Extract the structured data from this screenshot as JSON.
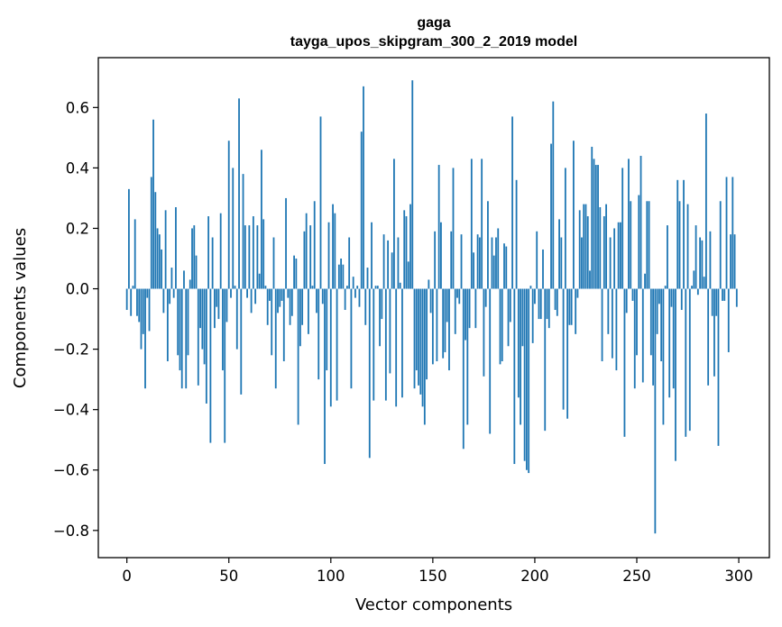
{
  "chart_data": {
    "type": "bar",
    "title": "gaga",
    "subtitle": "tayga_upos_skipgram_300_2_2019 model",
    "xlabel": "Vector components",
    "ylabel": "Components values",
    "xlim": [
      -14,
      315
    ],
    "ylim": [
      -0.89,
      0.765
    ],
    "xticks": [
      0,
      50,
      100,
      150,
      200,
      250,
      300
    ],
    "xtick_labels": [
      "0",
      "50",
      "100",
      "150",
      "200",
      "250",
      "300"
    ],
    "yticks": [
      -0.8,
      -0.6,
      -0.4,
      -0.2,
      0.0,
      0.2,
      0.4,
      0.6
    ],
    "ytick_labels": [
      "−0.8",
      "−0.6",
      "−0.4",
      "−0.2",
      "0.0",
      "0.2",
      "0.4",
      "0.6"
    ],
    "grid": false,
    "bar_color": "#1f77b4",
    "x": "0..299 (component index)",
    "values": [
      -0.07,
      0.33,
      -0.09,
      0.01,
      0.23,
      -0.09,
      -0.11,
      -0.2,
      -0.15,
      -0.33,
      -0.03,
      -0.14,
      0.37,
      0.56,
      0.32,
      0.2,
      0.18,
      0.13,
      -0.08,
      0.26,
      -0.24,
      -0.05,
      0.07,
      -0.03,
      0.27,
      -0.22,
      -0.27,
      -0.33,
      0.06,
      -0.33,
      -0.22,
      0.03,
      0.2,
      0.21,
      0.11,
      -0.32,
      -0.13,
      -0.2,
      -0.25,
      -0.38,
      0.24,
      -0.51,
      0.17,
      -0.13,
      -0.06,
      -0.1,
      0.25,
      -0.27,
      -0.51,
      -0.11,
      0.49,
      -0.03,
      0.4,
      0.01,
      -0.2,
      0.63,
      -0.35,
      0.38,
      0.21,
      -0.03,
      0.21,
      -0.08,
      0.24,
      -0.05,
      0.21,
      0.05,
      0.46,
      0.23,
      0.01,
      -0.12,
      -0.04,
      -0.22,
      0.17,
      -0.33,
      -0.08,
      -0.06,
      -0.04,
      -0.24,
      0.3,
      -0.03,
      -0.12,
      -0.09,
      0.11,
      0.1,
      -0.45,
      -0.19,
      -0.12,
      0.19,
      0.25,
      -0.15,
      0.21,
      0.01,
      0.29,
      -0.08,
      -0.3,
      0.57,
      -0.05,
      -0.58,
      -0.27,
      0.22,
      -0.39,
      0.28,
      0.25,
      -0.37,
      0.08,
      0.1,
      0.08,
      -0.07,
      0.01,
      0.17,
      -0.33,
      0.04,
      -0.03,
      0.01,
      -0.06,
      0.52,
      0.67,
      -0.12,
      0.07,
      -0.56,
      0.22,
      -0.37,
      0.01,
      0.01,
      -0.19,
      -0.1,
      0.18,
      -0.37,
      0.16,
      -0.28,
      0.12,
      0.43,
      -0.39,
      0.17,
      0.02,
      -0.36,
      0.26,
      0.24,
      0.09,
      0.28,
      0.69,
      -0.33,
      -0.27,
      -0.32,
      -0.35,
      -0.39,
      -0.45,
      -0.3,
      0.03,
      -0.08,
      -0.25,
      0.19,
      -0.24,
      0.41,
      0.22,
      -0.23,
      -0.21,
      -0.11,
      -0.27,
      0.19,
      0.4,
      -0.15,
      -0.03,
      -0.05,
      0.18,
      -0.53,
      -0.17,
      -0.45,
      -0.13,
      0.43,
      0.12,
      -0.13,
      0.18,
      0.17,
      0.43,
      -0.29,
      -0.06,
      0.29,
      -0.48,
      0.17,
      0.11,
      0.17,
      0.2,
      -0.25,
      -0.24,
      0.15,
      0.14,
      -0.19,
      -0.11,
      0.57,
      -0.58,
      0.36,
      -0.36,
      -0.45,
      -0.19,
      -0.57,
      -0.6,
      -0.61,
      0.01,
      -0.18,
      -0.05,
      0.19,
      -0.1,
      -0.1,
      0.13,
      -0.47,
      -0.1,
      -0.13,
      0.48,
      0.62,
      -0.07,
      -0.09,
      0.23,
      0.17,
      -0.4,
      0.4,
      -0.43,
      -0.12,
      -0.12,
      0.49,
      -0.15,
      -0.03,
      0.26,
      0.17,
      0.28,
      0.28,
      0.24,
      0.06,
      0.47,
      0.43,
      0.41,
      0.41,
      0.27,
      -0.24,
      0.24,
      0.28,
      -0.15,
      0.17,
      -0.23,
      0.2,
      -0.27,
      0.22,
      0.22,
      0.4,
      -0.49,
      -0.08,
      0.43,
      0.29,
      -0.04,
      -0.33,
      -0.22,
      0.31,
      0.44,
      -0.31,
      0.05,
      0.29,
      0.29,
      -0.22,
      -0.32,
      -0.81,
      -0.15,
      -0.05,
      -0.24,
      -0.45,
      0.01,
      0.21,
      -0.36,
      -0.06,
      -0.33,
      -0.57,
      0.36,
      0.29,
      -0.07,
      0.36,
      -0.49,
      0.28,
      -0.47,
      0.01,
      0.06,
      0.21,
      -0.02,
      0.17,
      0.16,
      0.04,
      0.58,
      -0.32,
      0.19,
      -0.09,
      -0.29,
      -0.09,
      -0.52,
      0.29,
      -0.04,
      -0.04,
      0.37,
      -0.21,
      0.18,
      0.37,
      0.18,
      -0.06
    ]
  }
}
